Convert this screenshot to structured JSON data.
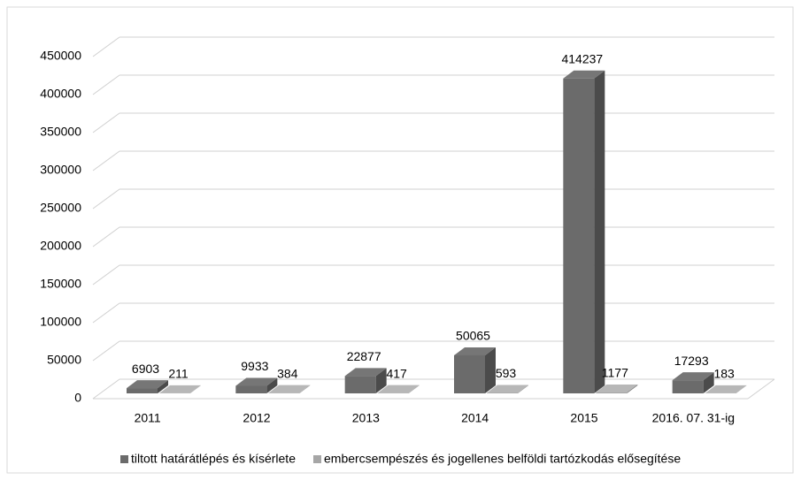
{
  "chart_data": {
    "type": "bar3d",
    "categories": [
      "2011",
      "2012",
      "2013",
      "2014",
      "2015",
      "2016. 07. 31-ig"
    ],
    "series": [
      {
        "name": "tiltott határátlépés és kísérlete",
        "color": "#6b6b6b",
        "values": [
          6903,
          9933,
          22877,
          50065,
          414237,
          17293
        ]
      },
      {
        "name": "embercsempészés és jogellenes belföldi tartózkodás elősegítése",
        "color": "#a6a6a6",
        "values": [
          211,
          384,
          417,
          593,
          1177,
          183
        ]
      }
    ],
    "ylim": [
      0,
      450000
    ],
    "yticks": [
      0,
      50000,
      100000,
      150000,
      200000,
      250000,
      300000,
      350000,
      400000,
      450000
    ],
    "grid": true
  }
}
